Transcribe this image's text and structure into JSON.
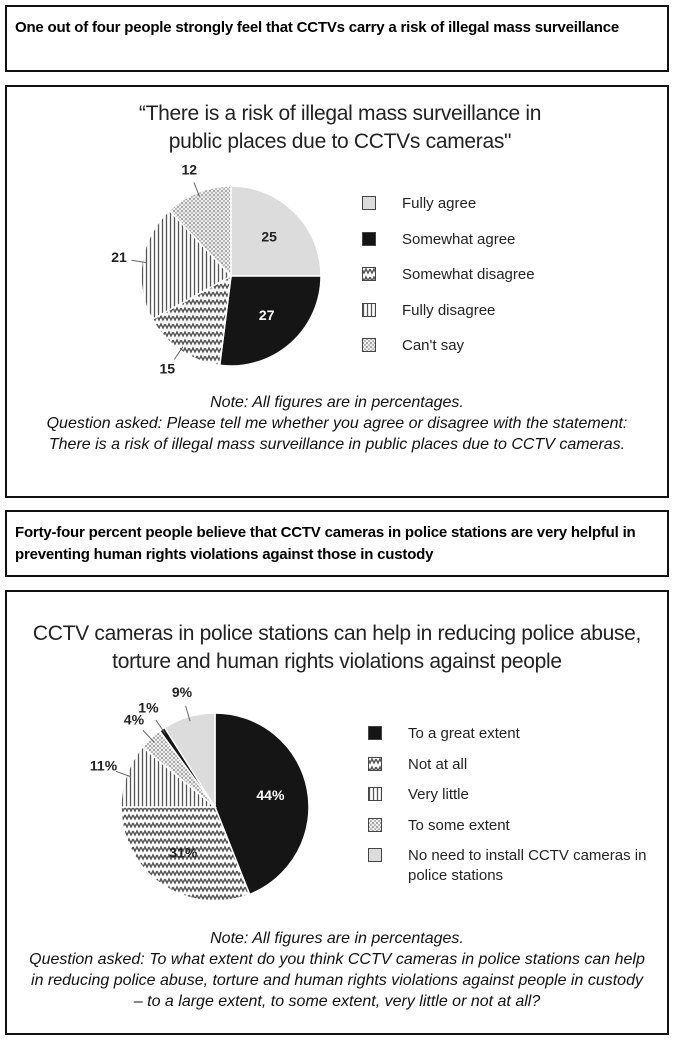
{
  "chart_data": [
    {
      "heading": "One out of four people strongly feel that CCTVs carry a risk of illegal mass surveillance",
      "type": "pie",
      "title": "“There is a risk of illegal mass surveillance in public places due to CCTVs cameras\"",
      "categories": [
        "Fully agree",
        "Somewhat agree",
        "Somewhat disagree",
        "Fully disagree",
        "Can't say"
      ],
      "values": [
        25,
        27,
        15,
        21,
        12
      ],
      "patterns": [
        "light",
        "black",
        "zigzag",
        "vlines",
        "dots"
      ],
      "note": "Note: All figures are in percentages.",
      "question": "Question asked: Please tell me whether you agree or disagree with the statement: There is a risk of illegal mass surveillance in public places due to CCTV cameras."
    },
    {
      "heading": "Forty-four percent people believe that CCTV cameras in police stations are very helpful in preventing human rights violations against those in custody",
      "type": "pie",
      "title": "CCTV cameras in police stations can help in reducing police abuse, torture and human rights violations against people",
      "categories": [
        "To a great extent",
        "Not at all",
        "Very little",
        "To some extent",
        null,
        "No need to install CCTV cameras in police stations"
      ],
      "values": [
        44,
        31,
        11,
        4,
        1,
        9
      ],
      "value_labels": [
        "44%",
        "31%",
        "11%",
        "4%",
        "1%",
        "9%"
      ],
      "patterns": [
        "black",
        "zigzag",
        "vlines",
        "dots",
        "black",
        "light"
      ],
      "note": "Note: All figures are in percentages.",
      "question": "Question asked: To what extent do you think CCTV cameras in police stations can help in reducing police abuse, torture and human rights violations against people in custody – to a large extent, to some extent, very little or not at all?"
    }
  ]
}
